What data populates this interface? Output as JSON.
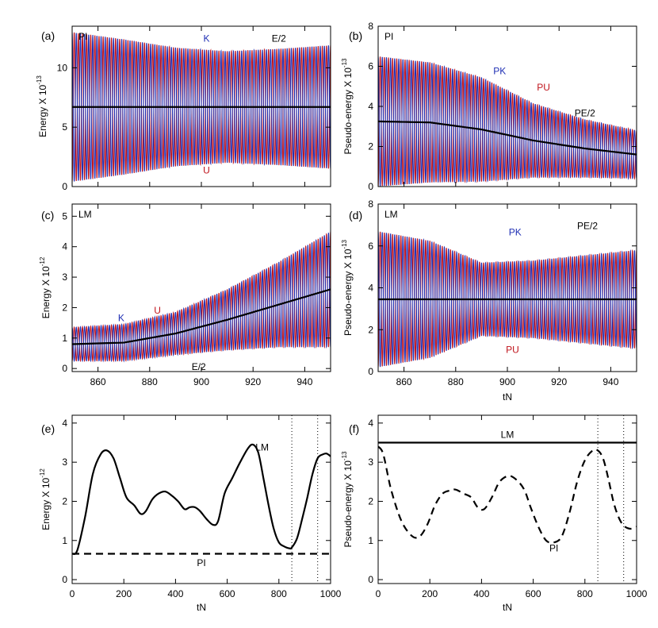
{
  "colors": {
    "blue": "#1f2fb4",
    "red": "#c0141c",
    "black": "#000000"
  },
  "chart_data": [
    {
      "id": "a",
      "letter": "(a)",
      "type": "line",
      "tag": "PI",
      "ylabel": "Energy X 10",
      "yexp": "-13",
      "xlim": [
        850,
        950
      ],
      "ylim": [
        0,
        13.5
      ],
      "xticks": [
        860,
        880,
        900,
        920,
        940
      ],
      "xtick_labels": [
        "",
        "",
        "",
        "",
        ""
      ],
      "yticks": [
        0,
        5,
        10
      ],
      "xlabel": "",
      "osc": {
        "period": 1.6,
        "mean": [
          6.7,
          6.7,
          6.7,
          6.7,
          6.7,
          6.7
        ],
        "amp": [
          6.3,
          5.7,
          5.0,
          4.7,
          4.9,
          5.2
        ],
        "xk": [
          850,
          870,
          890,
          910,
          930,
          950
        ]
      },
      "labels": [
        {
          "text": "K",
          "color": "blue",
          "x": 902,
          "y": 12.2
        },
        {
          "text": "E/2",
          "color": "black",
          "x": 930,
          "y": 12.2
        },
        {
          "text": "U",
          "color": "red",
          "x": 902,
          "y": 1.1
        }
      ]
    },
    {
      "id": "b",
      "letter": "(b)",
      "type": "line",
      "tag": "PI",
      "ylabel": "Pseudo-energy X 10",
      "yexp": "-13",
      "xlim": [
        850,
        950
      ],
      "ylim": [
        0,
        8
      ],
      "xticks": [
        860,
        880,
        900,
        920,
        940
      ],
      "xtick_labels": [
        "",
        "",
        "",
        "",
        ""
      ],
      "yticks": [
        0,
        2,
        4,
        6,
        8
      ],
      "xlabel": "",
      "osc": {
        "period": 1.6,
        "mean": [
          3.25,
          3.2,
          2.85,
          2.3,
          1.9,
          1.6
        ],
        "amp": [
          3.25,
          3.0,
          2.6,
          1.85,
          1.45,
          1.2
        ],
        "xk": [
          850,
          870,
          890,
          910,
          930,
          950
        ]
      },
      "labels": [
        {
          "text": "PK",
          "color": "blue",
          "x": 897,
          "y": 5.6
        },
        {
          "text": "PU",
          "color": "red",
          "x": 914,
          "y": 4.8
        },
        {
          "text": "PE/2",
          "color": "black",
          "x": 930,
          "y": 3.5
        }
      ]
    },
    {
      "id": "c",
      "letter": "(c)",
      "type": "line",
      "tag": "LM",
      "ylabel": "Energy X 10",
      "yexp": "-12",
      "xlim": [
        850,
        950
      ],
      "ylim": [
        -0.1,
        5.4
      ],
      "xticks": [
        860,
        880,
        900,
        920,
        940
      ],
      "xtick_labels": [
        "860",
        "880",
        "900",
        "920",
        "940"
      ],
      "yticks": [
        0,
        1,
        2,
        3,
        4,
        5
      ],
      "xlabel": "",
      "osc": {
        "period": 1.6,
        "mean": [
          0.8,
          0.85,
          1.15,
          1.6,
          2.1,
          2.6
        ],
        "amp": [
          0.55,
          0.6,
          0.7,
          1.0,
          1.4,
          1.9
        ],
        "xk": [
          850,
          870,
          890,
          910,
          930,
          950
        ]
      },
      "labels": [
        {
          "text": "K",
          "color": "blue",
          "x": 869,
          "y": 1.55
        },
        {
          "text": "U",
          "color": "red",
          "x": 883,
          "y": 1.8
        },
        {
          "text": "E/2",
          "color": "black",
          "x": 899,
          "y": -0.05
        }
      ]
    },
    {
      "id": "d",
      "letter": "(d)",
      "type": "line",
      "tag": "LM",
      "ylabel": "Pseudo-energy X 10",
      "yexp": "-13",
      "xlim": [
        850,
        950
      ],
      "ylim": [
        0,
        8
      ],
      "xticks": [
        860,
        880,
        900,
        920,
        940
      ],
      "xtick_labels": [
        "860",
        "880",
        "900",
        "920",
        "940"
      ],
      "yticks": [
        0,
        2,
        4,
        6,
        8
      ],
      "xlabel": "tN",
      "osc": {
        "period": 1.6,
        "mean": [
          3.45,
          3.45,
          3.45,
          3.45,
          3.45,
          3.45
        ],
        "amp": [
          3.25,
          2.8,
          1.75,
          1.85,
          2.1,
          2.35
        ],
        "xk": [
          850,
          870,
          890,
          910,
          930,
          950
        ]
      },
      "labels": [
        {
          "text": "PK",
          "color": "blue",
          "x": 903,
          "y": 6.5
        },
        {
          "text": "PE/2",
          "color": "black",
          "x": 931,
          "y": 6.8
        },
        {
          "text": "PU",
          "color": "red",
          "x": 902,
          "y": 0.9
        }
      ]
    },
    {
      "id": "e",
      "letter": "(e)",
      "type": "line",
      "tag": "",
      "ylabel": "Energy X 10",
      "yexp": "-12",
      "xlim": [
        0,
        1000
      ],
      "ylim": [
        -0.1,
        4.2
      ],
      "xticks": [
        0,
        200,
        400,
        600,
        800,
        1000
      ],
      "xtick_labels": [
        "0",
        "200",
        "400",
        "600",
        "800",
        "1000"
      ],
      "yticks": [
        0,
        1,
        2,
        3,
        4
      ],
      "xlabel": "tN",
      "vlines": [
        850,
        950
      ],
      "series": [
        {
          "name": "LM",
          "style": "solid",
          "x": [
            0,
            20,
            50,
            80,
            110,
            135,
            160,
            185,
            210,
            240,
            265,
            285,
            310,
            335,
            360,
            385,
            410,
            435,
            455,
            475,
            495,
            520,
            545,
            565,
            590,
            620,
            650,
            680,
            700,
            720,
            740,
            760,
            780,
            800,
            820,
            840,
            850,
            870,
            890,
            910,
            930,
            950,
            970,
            985,
            1000
          ],
          "y": [
            0.66,
            0.75,
            1.6,
            2.7,
            3.2,
            3.3,
            3.1,
            2.6,
            2.1,
            1.9,
            1.68,
            1.75,
            2.05,
            2.2,
            2.25,
            2.15,
            2.0,
            1.8,
            1.85,
            1.85,
            1.75,
            1.55,
            1.4,
            1.5,
            2.2,
            2.6,
            3.0,
            3.35,
            3.45,
            3.25,
            2.6,
            1.9,
            1.3,
            0.95,
            0.85,
            0.8,
            0.82,
            1.05,
            1.55,
            2.1,
            2.7,
            3.1,
            3.2,
            3.22,
            3.15
          ]
        },
        {
          "name": "PI",
          "style": "dashed",
          "x": [
            0,
            1000
          ],
          "y": [
            0.66,
            0.66
          ]
        }
      ],
      "labels": [
        {
          "text": "LM",
          "color": "black",
          "x": 735,
          "y": 3.3
        },
        {
          "text": "PI",
          "color": "black",
          "x": 500,
          "y": 0.35
        }
      ]
    },
    {
      "id": "f",
      "letter": "(f)",
      "type": "line",
      "tag": "",
      "ylabel": "Pseudo-energy X 10",
      "yexp": "-13",
      "xlim": [
        0,
        1000
      ],
      "ylim": [
        -0.1,
        4.2
      ],
      "xticks": [
        0,
        200,
        400,
        600,
        800,
        1000
      ],
      "xtick_labels": [
        "0",
        "200",
        "400",
        "600",
        "800",
        "1000"
      ],
      "yticks": [
        0,
        1,
        2,
        3,
        4
      ],
      "xlabel": "tN",
      "vlines": [
        850,
        950
      ],
      "series": [
        {
          "name": "LM",
          "style": "solid",
          "x": [
            0,
            1000
          ],
          "y": [
            3.5,
            3.5
          ]
        },
        {
          "name": "PI",
          "style": "dashed",
          "x": [
            0,
            20,
            50,
            90,
            130,
            160,
            190,
            220,
            250,
            280,
            300,
            330,
            360,
            385,
            410,
            440,
            470,
            505,
            535,
            565,
            590,
            620,
            650,
            680,
            710,
            740,
            770,
            800,
            830,
            850,
            870,
            890,
            910,
            930,
            950,
            975,
            1000
          ],
          "y": [
            3.4,
            3.2,
            2.3,
            1.5,
            1.12,
            1.1,
            1.4,
            1.9,
            2.2,
            2.28,
            2.3,
            2.2,
            2.1,
            1.85,
            1.8,
            2.1,
            2.5,
            2.65,
            2.55,
            2.3,
            1.85,
            1.35,
            1.0,
            0.95,
            1.1,
            1.7,
            2.5,
            3.05,
            3.3,
            3.3,
            3.1,
            2.6,
            2.0,
            1.6,
            1.38,
            1.3,
            1.35
          ]
        }
      ],
      "labels": [
        {
          "text": "LM",
          "color": "black",
          "x": 500,
          "y": 3.62
        },
        {
          "text": "PI",
          "color": "black",
          "x": 680,
          "y": 0.72
        }
      ]
    }
  ]
}
